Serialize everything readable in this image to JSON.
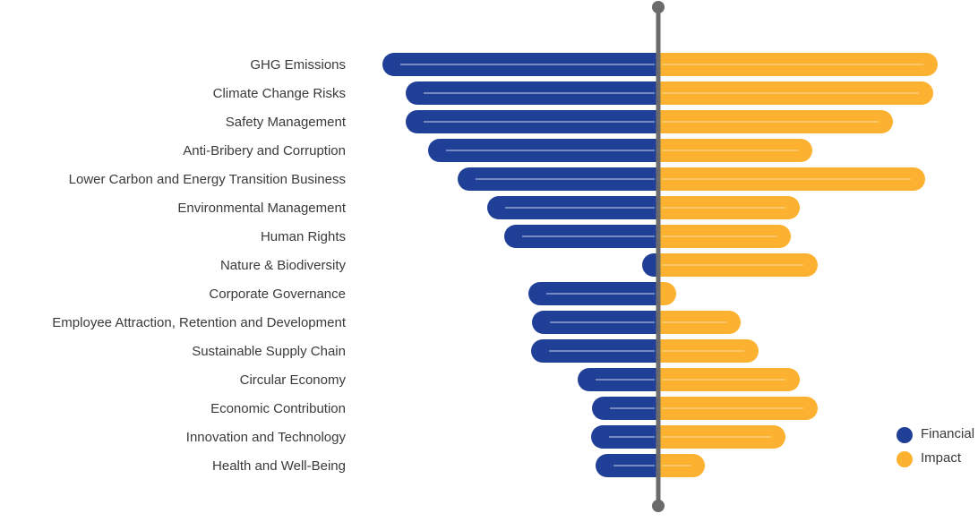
{
  "chart_data": {
    "type": "bar",
    "orientation": "horizontal-diverging",
    "categories": [
      "GHG Emissions",
      "Climate Change Risks",
      "Safety Management",
      "Anti-Bribery and Corruption",
      "Lower Carbon and Energy Transition Business",
      "Environmental Management",
      "Human Rights",
      "Nature & Biodiversity",
      "Corporate Governance",
      "Employee Attraction, Retention and Development",
      "Sustainable Supply Chain",
      "Circular Economy",
      "Economic Contribution",
      "Innovation and Technology",
      "Health and Well-Being"
    ],
    "series": [
      {
        "name": "Financial",
        "color": "#203f97",
        "direction": "left",
        "values": [
          308,
          282,
          282,
          257,
          224,
          191,
          172,
          18,
          145,
          141,
          142,
          90,
          74,
          75,
          70
        ]
      },
      {
        "name": "Impact",
        "color": "#fdb130",
        "direction": "right",
        "values": [
          312,
          307,
          262,
          172,
          298,
          158,
          148,
          178,
          20,
          92,
          112,
          158,
          178,
          142,
          52
        ]
      }
    ],
    "legend": {
      "position": "bottom-right",
      "items": [
        {
          "label": "Financial",
          "color": "#203f97"
        },
        {
          "label": "Impact",
          "color": "#fdb130"
        }
      ]
    },
    "axis_color": "#6b6b6b",
    "inner_line_color": "#c8d2ee",
    "title": "",
    "xlabel": "",
    "ylabel": ""
  }
}
